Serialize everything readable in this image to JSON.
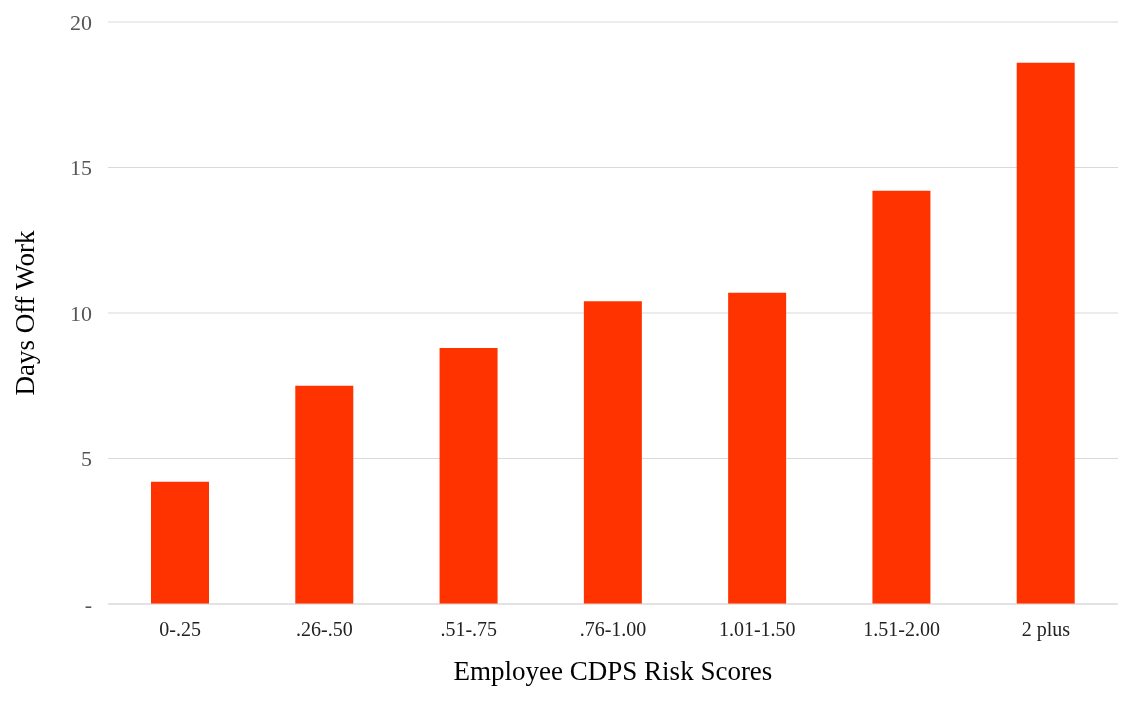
{
  "chart_data": {
    "type": "bar",
    "xlabel": "Employee CDPS Risk Scores",
    "ylabel": "Days Off Work",
    "categories": [
      "0-.25",
      ".26-.50",
      ".51-.75",
      ".76-1.00",
      "1.01-1.50",
      "1.51-2.00",
      "2 plus"
    ],
    "values": [
      4.2,
      7.5,
      8.8,
      10.4,
      10.7,
      14.2,
      18.6
    ],
    "color": "#ff3300",
    "ylim": [
      0,
      20
    ],
    "yticks": [
      {
        "value": 0,
        "label": "-"
      },
      5,
      10,
      15,
      20
    ],
    "grid": "y",
    "legend": false
  }
}
